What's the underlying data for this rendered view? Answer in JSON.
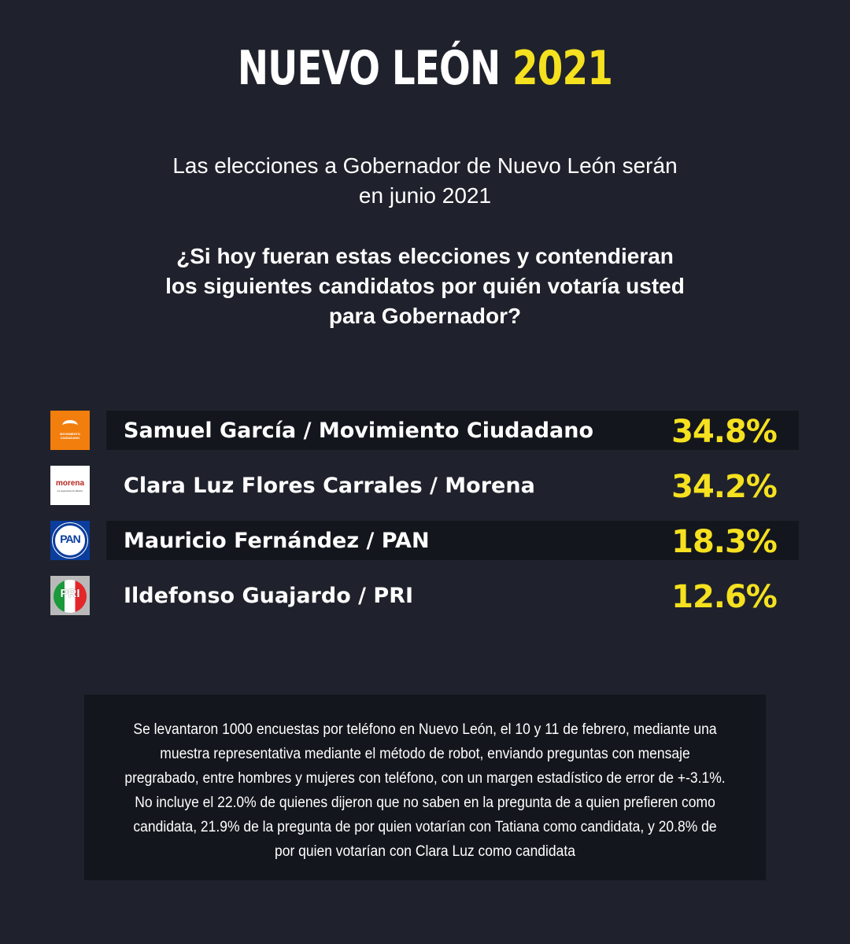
{
  "header": {
    "title_main": "NUEVO LEÓN",
    "title_year": "2021"
  },
  "intro": {
    "line1": "Las elecciones a Gobernador de Nuevo León serán",
    "line2": "en junio 2021"
  },
  "question": {
    "line1": "¿Si hoy fueran estas elecciones y contendieran",
    "line2": "los siguientes candidatos por quién votaría usted",
    "line3": "para Gobernador?"
  },
  "candidates": [
    {
      "name": "Samuel García / Movimiento Ciudadano",
      "percent": "34.8%",
      "value": 34.8,
      "logo": "movimiento-ciudadano-logo",
      "logo_text": "MOVIMIENTO CIUDADANO"
    },
    {
      "name": "Clara Luz Flores Carrales / Morena",
      "percent": "34.2%",
      "value": 34.2,
      "logo": "morena-logo",
      "logo_text": "morena",
      "logo_subtext": "La esperanza de México"
    },
    {
      "name": "Mauricio Fernández / PAN",
      "percent": "18.3%",
      "value": 18.3,
      "logo": "pan-logo",
      "logo_text": "PAN"
    },
    {
      "name": "Ildefonso Guajardo / PRI",
      "percent": "12.6%",
      "value": 12.6,
      "logo": "pri-logo",
      "logo_text": "PRI"
    }
  ],
  "footnote": "Se levantaron 1000 encuestas por teléfono en Nuevo León, el 10 y 11 de febrero, mediante una muestra representativa mediante el método de robot, enviando preguntas con mensaje pregrabado, entre hombres y mujeres con teléfono, con un margen estadístico de error de +-3.1%. No incluye el 22.0% de quienes dijeron que no saben en la pregunta de a quien prefieren como candidata, 21.9% de la pregunta de por quien votarían con Tatiana como candidata, y 20.8% de por quien votarían con Clara Luz como candidata",
  "colors": {
    "background": "#1f222c",
    "accent": "#f5e11f",
    "bar": "#14161d"
  }
}
